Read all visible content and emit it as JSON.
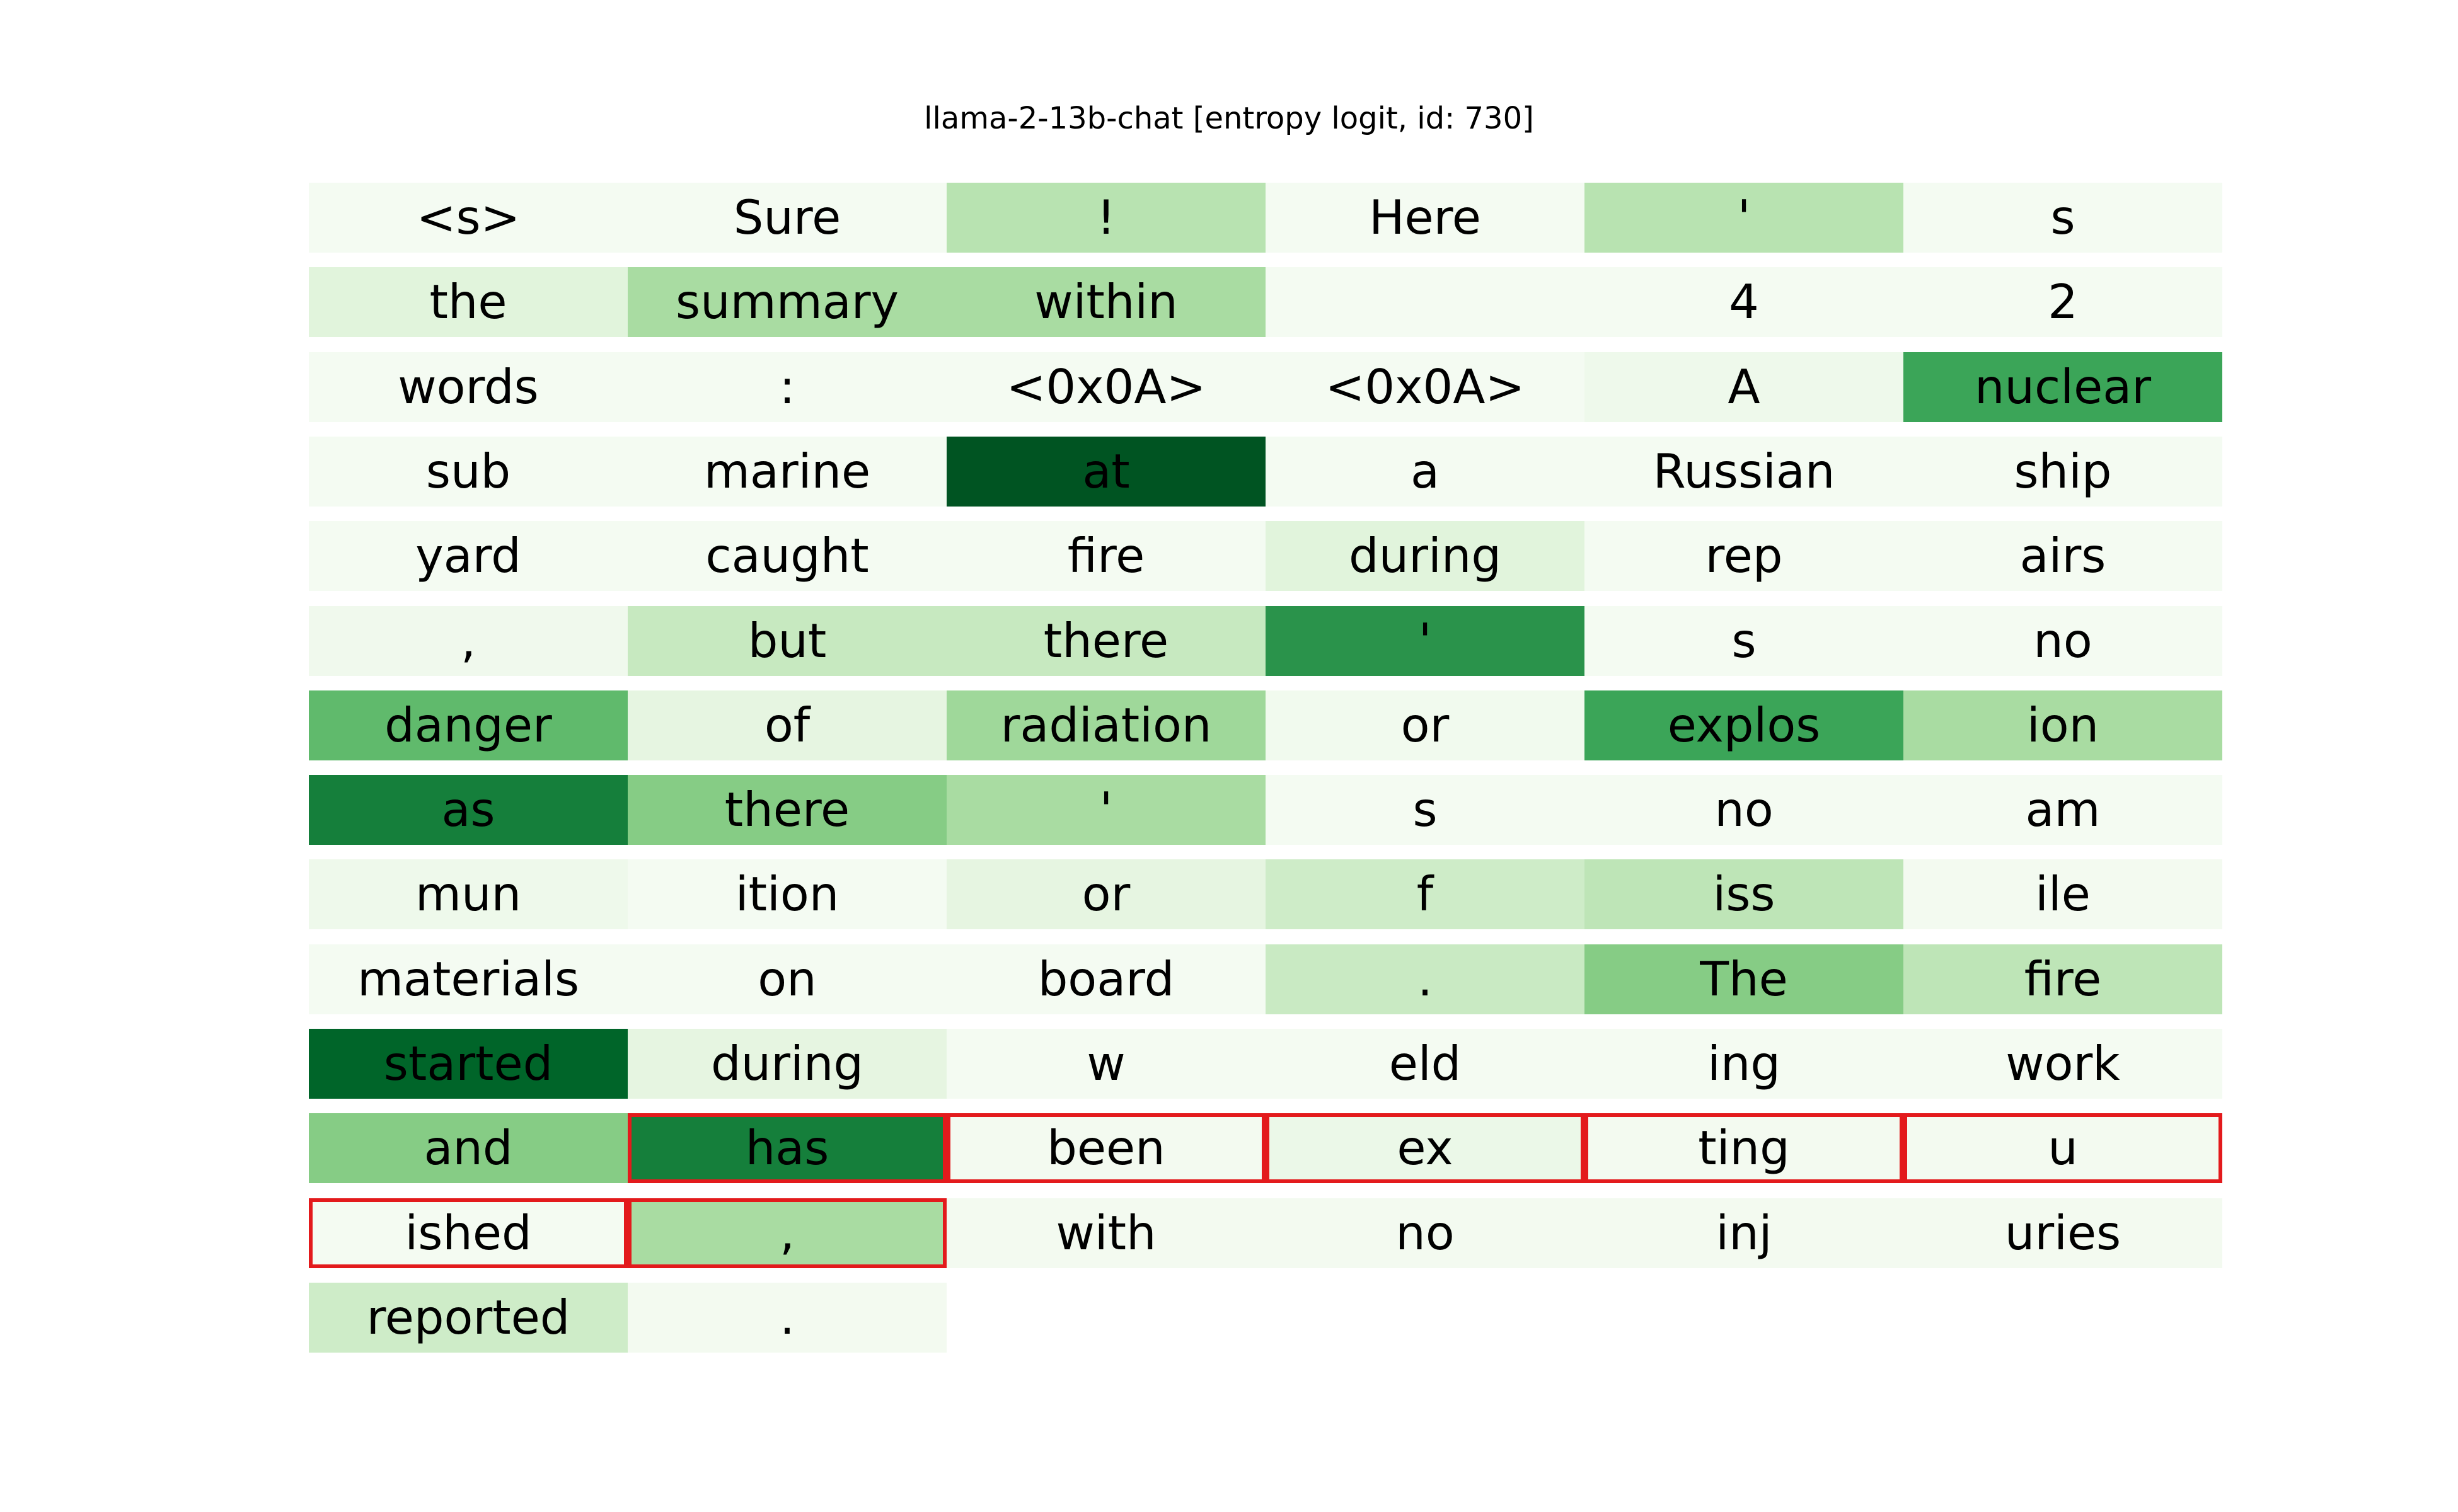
{
  "chart_data": {
    "type": "heatmap",
    "title": "llama-2-13b-chat [entropy logit, id: 730]",
    "columns": 6,
    "value_range": [
      0,
      1
    ],
    "colormap": "Greens",
    "tokens": [
      "<s>",
      "Sure",
      "!",
      "Here",
      "'",
      "s",
      "the",
      "summary",
      "within",
      "",
      "4",
      "2",
      "words",
      ":",
      "<0x0A>",
      "<0x0A>",
      "A",
      "nuclear",
      "sub",
      "marine",
      "at",
      "a",
      "Russian",
      "ship",
      "yard",
      "caught",
      "fire",
      "during",
      "rep",
      "airs",
      ",",
      "but",
      "there",
      "'",
      "s",
      "no",
      "danger",
      "of",
      "radiation",
      "or",
      "explos",
      "ion",
      "as",
      "there",
      "'",
      "s",
      "no",
      "am",
      "mun",
      "ition",
      "or",
      "f",
      "iss",
      "ile",
      "materials",
      "on",
      "board",
      ".",
      "The",
      "fire",
      "started",
      "during",
      "w",
      "eld",
      "ing",
      "work",
      "and",
      "has",
      "been",
      "ex",
      "ting",
      "u",
      "ished",
      ",",
      "with",
      "no",
      "inj",
      "uries",
      "reported",
      "."
    ],
    "values": [
      0.02,
      0.02,
      0.3,
      0.02,
      0.3,
      0.02,
      0.14,
      0.35,
      0.35,
      0.02,
      0.02,
      0.02,
      0.02,
      0.02,
      0.02,
      0.02,
      0.06,
      0.65,
      0.02,
      0.02,
      0.95,
      0.02,
      0.02,
      0.02,
      0.02,
      0.02,
      0.02,
      0.14,
      0.02,
      0.02,
      0.05,
      0.25,
      0.25,
      0.72,
      0.02,
      0.02,
      0.55,
      0.12,
      0.38,
      0.04,
      0.65,
      0.35,
      0.8,
      0.45,
      0.35,
      0.02,
      0.02,
      0.02,
      0.06,
      0.02,
      0.12,
      0.22,
      0.28,
      0.03,
      0.02,
      0.02,
      0.02,
      0.24,
      0.45,
      0.28,
      0.9,
      0.12,
      0.02,
      0.02,
      0.02,
      0.02,
      0.45,
      0.8,
      0.03,
      0.08,
      0.03,
      0.03,
      0.02,
      0.35,
      0.03,
      0.03,
      0.03,
      0.03,
      0.22,
      0.03
    ],
    "highlighted": [
      67,
      68,
      69,
      70,
      71,
      72,
      73
    ],
    "highlight_color": "#e31a1c",
    "grid": false,
    "legend": "none"
  }
}
